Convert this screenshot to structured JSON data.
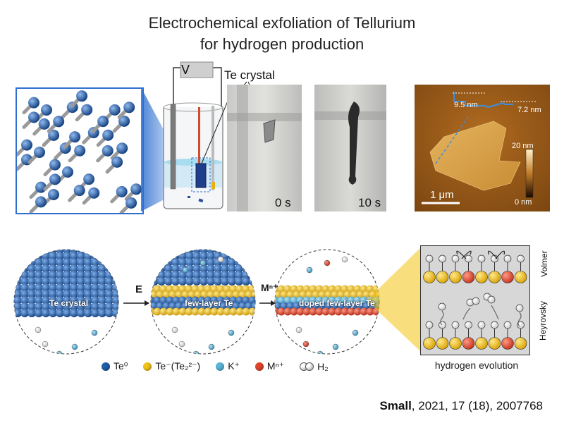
{
  "title": {
    "line1": "Electrochemical exfoliation of Tellurium",
    "line2": "for hydrogen production"
  },
  "cell": {
    "voltage_label": "V",
    "crystal_label": "Te crystal"
  },
  "photos": {
    "t0_label": "0 s",
    "t10_label": "10 s"
  },
  "afm": {
    "height1": "9.5 nm",
    "height2": "7.2 nm",
    "scale_max": "20 nm",
    "scale_min": "0 nm",
    "scalebar": "1 μm"
  },
  "mechanism": {
    "sphere1_label": "Te crystal",
    "arrow1_label": "E",
    "sphere2_label": "few-layer Te",
    "arrow2_label": "Mⁿ⁺",
    "sphere3_label": "doped few-layer Te",
    "panel_top_label": "Volmer",
    "panel_bottom_label": "Heyrovsky",
    "panel_caption": "hydrogen evolution"
  },
  "legend": [
    {
      "label": "Te⁰",
      "color": "#1f5fa8",
      "icon": "blue-atom"
    },
    {
      "label": "Te⁻(Te₂²⁻)",
      "color": "#f2c31a",
      "icon": "yellow-atom"
    },
    {
      "label": "K⁺",
      "color": "#5bb4d8",
      "icon": "lightblue-atom"
    },
    {
      "label": "Mⁿ⁺",
      "color": "#e0452c",
      "icon": "red-atom"
    },
    {
      "label": "H₂",
      "color": "#ffffff",
      "icon": "hydrogen-molecule"
    }
  ],
  "reference": {
    "journal": "Small",
    "details": ", 2021, 17 (18), 2007768"
  }
}
